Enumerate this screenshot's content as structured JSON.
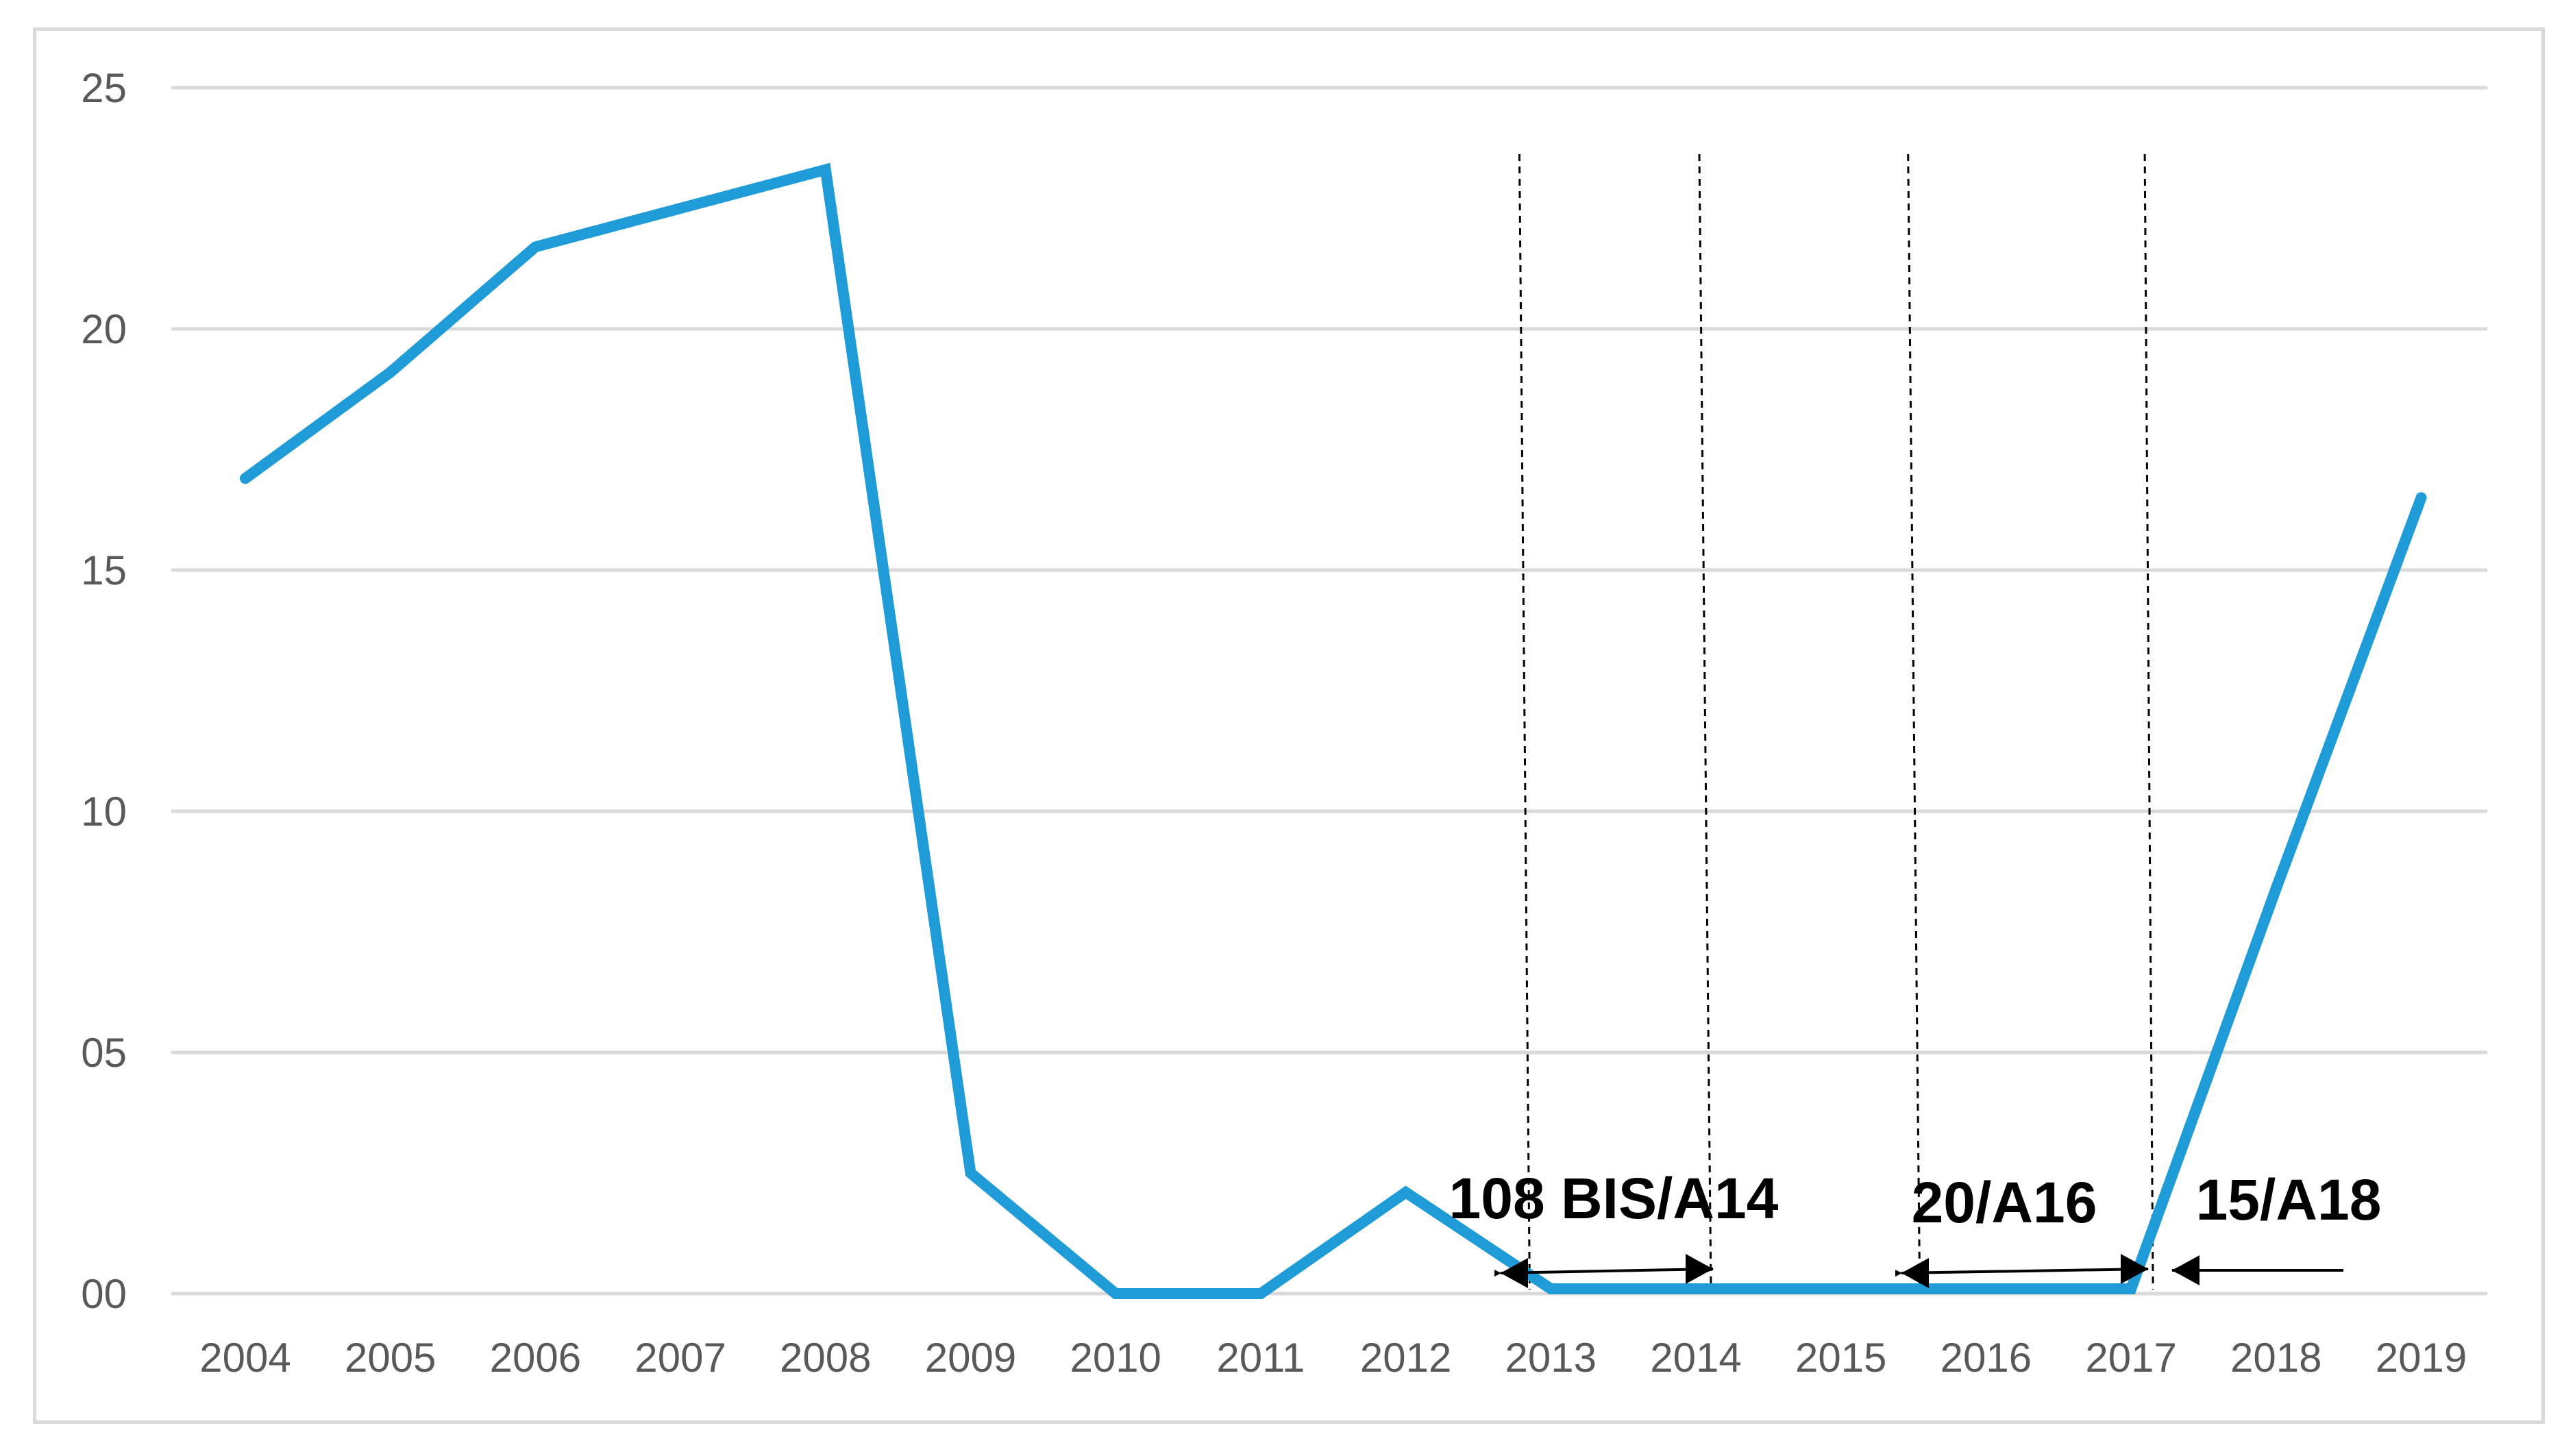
{
  "chart_data": {
    "type": "line",
    "title": "",
    "xlabel": "",
    "ylabel": "",
    "categories": [
      "2004",
      "2005",
      "2006",
      "2007",
      "2008",
      "2009",
      "2010",
      "2011",
      "2012",
      "2013",
      "2014",
      "2015",
      "2016",
      "2017",
      "2018",
      "2019"
    ],
    "series": [
      {
        "values": [
          16.9,
          19.1,
          21.7,
          22.5,
          23.3,
          2.5,
          0.0,
          0.0,
          2.1,
          0.1,
          0.1,
          0.1,
          0.1,
          0.1,
          8.4,
          16.5
        ]
      }
    ],
    "ylim": [
      0,
      25
    ],
    "yticks": [
      0,
      5,
      10,
      15,
      20,
      25
    ],
    "ytick_labels": [
      "00",
      "05",
      "10",
      "15",
      "20",
      "25"
    ],
    "grid": "horizontal",
    "legend": "none",
    "colors": {
      "line": "#1f9cd8",
      "grid": "#d9d9d9",
      "tick_text": "#595959",
      "annotation": "#000000"
    },
    "annotations": [
      {
        "text": "108 BIS/A14",
        "from": "2013",
        "to": "2014"
      },
      {
        "text": "20/A16",
        "from": "2015",
        "to": "2017"
      },
      {
        "text": "15/A18",
        "from": "2017",
        "to": "2018"
      }
    ],
    "reference_lines": [
      "2012/2013",
      "2014",
      "2015",
      "2017"
    ]
  }
}
